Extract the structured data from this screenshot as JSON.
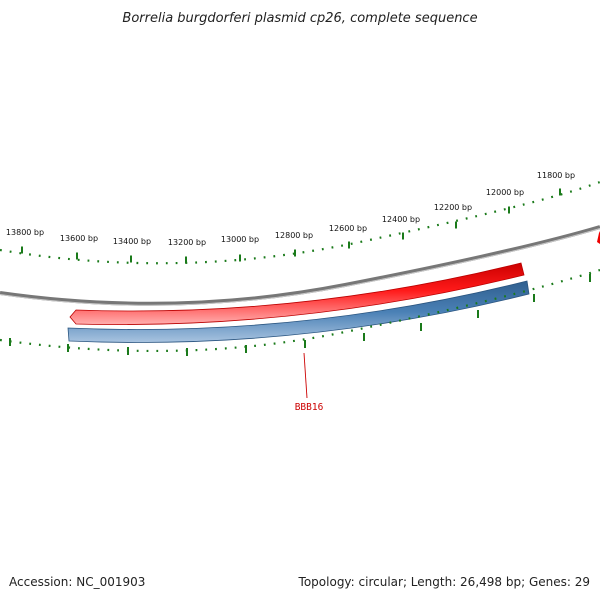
{
  "title": "Borrelia burgdorferi plasmid cp26, complete sequence",
  "scale_labels": [
    "13800 bp",
    "13600 bp",
    "13400 bp",
    "13200 bp",
    "13000 bp",
    "12800 bp",
    "12600 bp",
    "12400 bp",
    "12200 bp",
    "12000 bp",
    "11800 bp"
  ],
  "gene_label": "BBB16",
  "footer": {
    "accession": "Accession: NC_001903",
    "info": "Topology: circular; Length: 26,498 bp; Genes: 29"
  },
  "colors": {
    "backbone": "#777777",
    "forward_gene": "#ee0000",
    "reverse_gene": "#3f74a8",
    "ticks": "#1a7a1a",
    "label_line": "#cc0000"
  }
}
